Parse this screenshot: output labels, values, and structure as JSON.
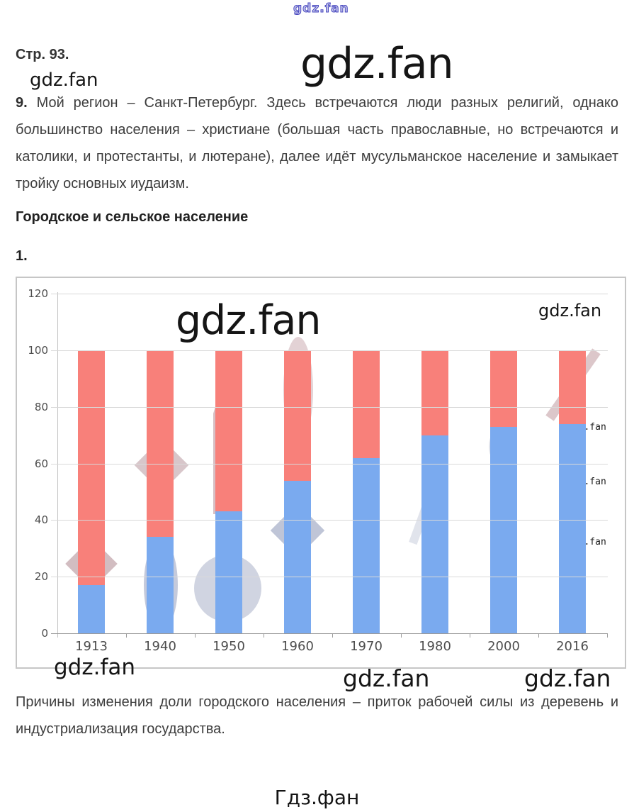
{
  "page": {
    "page_label": "Стр. 93.",
    "para9_num": "9.",
    "para9_text": "Мой регион – Санкт-Петербург. Здесь встречаются люди разных религий, однако большинство населения – христиане (большая часть православные, но встречаются и католики, и протестанты, и лютеране), далее идёт мусульманское население и замыкает тройку основных иудаизм.",
    "section_heading": "Городское и сельское население",
    "figure_num": "1.",
    "conclusion": "Причины изменения доли городского населения – приток рабочей силы из деревень и индустриализация государства."
  },
  "watermarks": {
    "brand": "gdz.fan",
    "footer": "Гдз.фан"
  },
  "chart_data": {
    "type": "bar",
    "stacked": true,
    "title": "",
    "categories": [
      "1913",
      "1940",
      "1950",
      "1960",
      "1970",
      "1980",
      "2000",
      "2016"
    ],
    "series": [
      {
        "name": "blue-bottom-segment",
        "color": "#7AAAEF",
        "values": [
          17,
          34,
          43,
          54,
          62,
          70,
          73,
          74
        ]
      },
      {
        "name": "red-top-segment",
        "color": "#F8807A",
        "values": [
          83,
          66,
          57,
          46,
          38,
          30,
          27,
          26
        ]
      }
    ],
    "xlabel": "",
    "ylabel": "",
    "ylim": [
      0,
      120
    ],
    "yticks": [
      0,
      20,
      40,
      60,
      80,
      100,
      120
    ],
    "grid": true,
    "legend": "none",
    "bar_label_color": "#333f50"
  }
}
